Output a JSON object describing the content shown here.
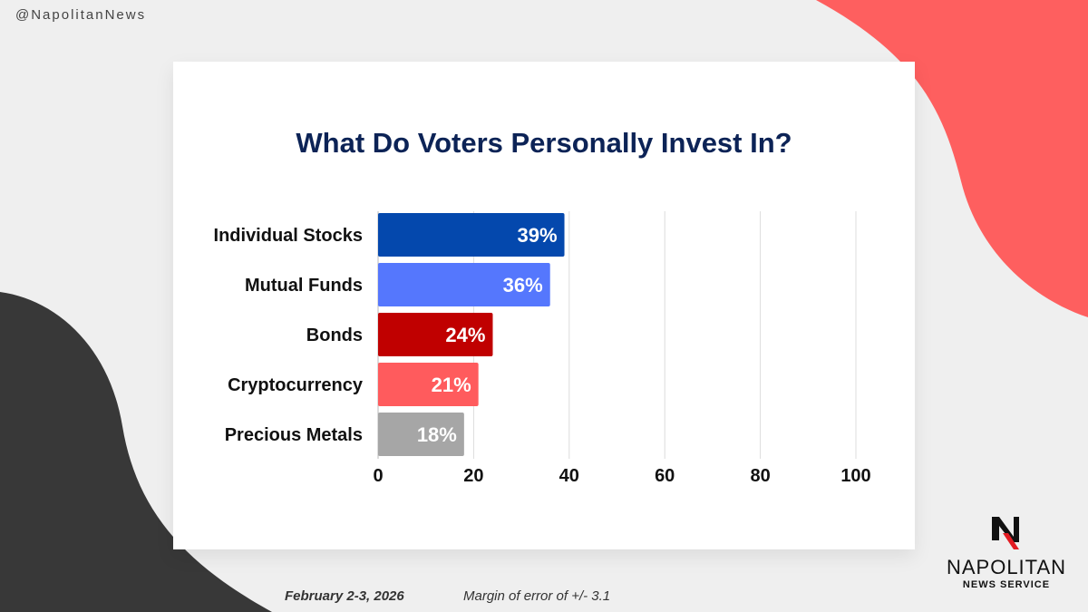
{
  "handle": "@NapolitanNews",
  "footer": {
    "date": "February 2-3, 2026",
    "margin": "Margin of error of +/- 3.1"
  },
  "logo": {
    "name": "NAPOLITAN",
    "sub": "NEWS SERVICE"
  },
  "chart_data": {
    "type": "bar",
    "orientation": "horizontal",
    "title": "What Do Voters Personally Invest In?",
    "categories": [
      "Individual Stocks",
      "Mutual Funds",
      "Bonds",
      "Cryptocurrency",
      "Precious Metals"
    ],
    "values": [
      39,
      36,
      24,
      21,
      18
    ],
    "labels": [
      "39%",
      "36%",
      "24%",
      "21%",
      "18%"
    ],
    "colors": [
      "#0448ad",
      "#5577fd",
      "#c00000",
      "#ff5b5d",
      "#a6a6a6"
    ],
    "xlim": [
      0,
      100
    ],
    "xticks": [
      "0",
      "20",
      "40",
      "60",
      "80",
      "100"
    ],
    "grid": true
  }
}
